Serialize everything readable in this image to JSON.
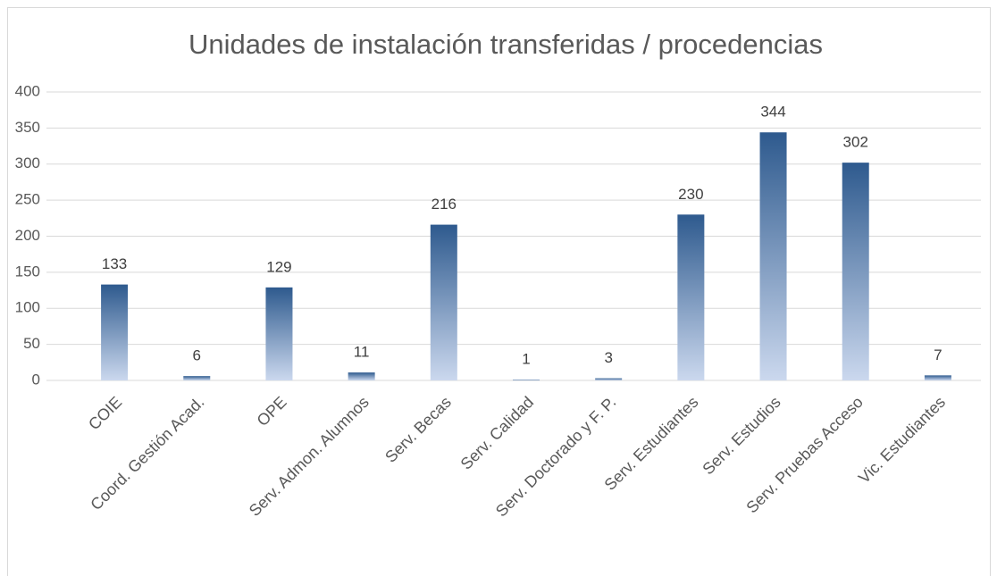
{
  "chart_data": {
    "type": "bar",
    "title": "Unidades de instalación transferidas / procedencias",
    "categories": [
      "COIE",
      "Coord. Gestión Acad.",
      "OPE",
      "Serv. Admon. Alumnos",
      "Serv. Becas",
      "Serv. Calidad",
      "Serv. Doctorado y F. P.",
      "Serv. Estudiantes",
      "Serv. Estudios",
      "Serv. Pruebas Acceso",
      "Vic. Estudiantes"
    ],
    "values": [
      133,
      6,
      129,
      11,
      216,
      1,
      3,
      230,
      344,
      302,
      7
    ],
    "gradient": [
      "#2e5a8e",
      "#cbd8ee"
    ],
    "ylim": [
      0,
      400
    ],
    "yticks": [
      0,
      50,
      100,
      150,
      200,
      250,
      300,
      350,
      400
    ],
    "grid": true
  }
}
